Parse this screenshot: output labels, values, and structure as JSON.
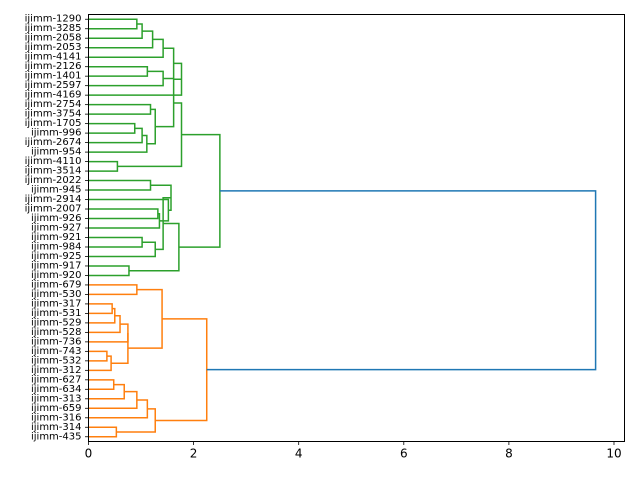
{
  "chart_data": {
    "type": "dendrogram",
    "orientation": "left",
    "title": "",
    "xlabel": "",
    "ylabel": "",
    "xlim": [
      0,
      10.2
    ],
    "x_ticks": [
      0,
      2,
      4,
      6,
      8,
      10
    ],
    "grid": false,
    "colors": {
      "c1": "#2ca02c",
      "c2": "#ff7f0e",
      "root": "#1f77b4"
    },
    "leaves": [
      "ijimm-1290",
      "ijimm-3285",
      "ijimm-2058",
      "ijimm-2053",
      "ijimm-4141",
      "ijimm-2126",
      "ijimm-1401",
      "ijimm-2597",
      "ijimm-4169",
      "ijimm-2754",
      "ijimm-3754",
      "ijimm-1705",
      "ijimm-996",
      "ijimm-2674",
      "ijimm-954",
      "ijimm-4110",
      "ijimm-3514",
      "ijimm-2022",
      "ijimm-945",
      "ijimm-2914",
      "ijimm-2007",
      "ijimm-926",
      "ijimm-927",
      "ijimm-921",
      "ijimm-984",
      "ijimm-925",
      "ijimm-917",
      "ijimm-920",
      "ijimm-679",
      "ijimm-530",
      "ijimm-317",
      "ijimm-531",
      "ijimm-529",
      "ijimm-528",
      "ijimm-736",
      "ijimm-743",
      "ijimm-532",
      "ijimm-312",
      "ijimm-627",
      "ijimm-634",
      "ijimm-313",
      "ijimm-659",
      "ijimm-316",
      "ijimm-314",
      "ijimm-435"
    ],
    "merges": [
      {
        "id": "n1",
        "a": "ijimm-1290",
        "b": "ijimm-3285",
        "height": 0.92,
        "color": "c1"
      },
      {
        "id": "n2",
        "a": "n1",
        "b": "ijimm-2058",
        "height": 1.02,
        "color": "c1"
      },
      {
        "id": "n3",
        "a": "n2",
        "b": "ijimm-2053",
        "height": 1.22,
        "color": "c1"
      },
      {
        "id": "n4",
        "a": "n3",
        "b": "ijimm-4141",
        "height": 1.42,
        "color": "c1"
      },
      {
        "id": "n5",
        "a": "ijimm-2126",
        "b": "ijimm-1401",
        "height": 1.12,
        "color": "c1"
      },
      {
        "id": "n6",
        "a": "n5",
        "b": "ijimm-2597",
        "height": 1.42,
        "color": "c1"
      },
      {
        "id": "n7",
        "a": "n4",
        "b": "n6",
        "height": 1.62,
        "color": "c1"
      },
      {
        "id": "n8",
        "a": "n7",
        "b": "ijimm-4169",
        "height": 1.77,
        "color": "c1"
      },
      {
        "id": "n9",
        "a": "ijimm-2754",
        "b": "ijimm-3754",
        "height": 1.18,
        "color": "c1"
      },
      {
        "id": "n10",
        "a": "ijimm-1705",
        "b": "ijimm-996",
        "height": 0.88,
        "color": "c1"
      },
      {
        "id": "n11",
        "a": "n10",
        "b": "ijimm-2674",
        "height": 1.02,
        "color": "c1"
      },
      {
        "id": "n12",
        "a": "n11",
        "b": "ijimm-954",
        "height": 1.11,
        "color": "c1"
      },
      {
        "id": "n13",
        "a": "n9",
        "b": "n12",
        "height": 1.27,
        "color": "c1"
      },
      {
        "id": "n14",
        "a": "n8",
        "b": "n13",
        "height": 1.62,
        "color": "c1"
      },
      {
        "id": "n15",
        "a": "ijimm-4110",
        "b": "ijimm-3514",
        "height": 0.55,
        "color": "c1"
      },
      {
        "id": "n16",
        "a": "n14",
        "b": "n15",
        "height": 1.77,
        "color": "c1"
      },
      {
        "id": "n17",
        "a": "ijimm-2022",
        "b": "ijimm-945",
        "height": 1.18,
        "color": "c1"
      },
      {
        "id": "n18",
        "a": "ijimm-2007",
        "b": "ijimm-926",
        "height": 1.32,
        "color": "c1"
      },
      {
        "id": "n19",
        "a": "n18",
        "b": "ijimm-927",
        "height": 1.35,
        "color": "c1"
      },
      {
        "id": "n20",
        "a": "ijimm-2914",
        "b": "n19",
        "height": 1.52,
        "color": "c1"
      },
      {
        "id": "n21",
        "a": "n17",
        "b": "n20",
        "height": 1.57,
        "color": "c1"
      },
      {
        "id": "n22",
        "a": "ijimm-921",
        "b": "ijimm-984",
        "height": 1.02,
        "color": "c1"
      },
      {
        "id": "n23",
        "a": "n22",
        "b": "ijimm-925",
        "height": 1.27,
        "color": "c1"
      },
      {
        "id": "n24",
        "a": "n21",
        "b": "n23",
        "height": 1.42,
        "color": "c1"
      },
      {
        "id": "n25",
        "a": "ijimm-917",
        "b": "ijimm-920",
        "height": 0.77,
        "color": "c1"
      },
      {
        "id": "n26",
        "a": "n24",
        "b": "n25",
        "height": 1.72,
        "color": "c1"
      },
      {
        "id": "n27",
        "a": "n16",
        "b": "n26",
        "height": 2.5,
        "color": "c1"
      },
      {
        "id": "n28",
        "a": "ijimm-679",
        "b": "ijimm-530",
        "height": 0.92,
        "color": "c2"
      },
      {
        "id": "n29",
        "a": "ijimm-317",
        "b": "ijimm-531",
        "height": 0.45,
        "color": "c2"
      },
      {
        "id": "n30",
        "a": "n29",
        "b": "ijimm-529",
        "height": 0.5,
        "color": "c2"
      },
      {
        "id": "n31",
        "a": "n30",
        "b": "ijimm-528",
        "height": 0.6,
        "color": "c2"
      },
      {
        "id": "n32",
        "a": "n31",
        "b": "ijimm-736",
        "height": 0.75,
        "color": "c2"
      },
      {
        "id": "n33",
        "a": "ijimm-743",
        "b": "ijimm-532",
        "height": 0.35,
        "color": "c2"
      },
      {
        "id": "n34",
        "a": "n33",
        "b": "ijimm-312",
        "height": 0.43,
        "color": "c2"
      },
      {
        "id": "n35",
        "a": "n32",
        "b": "n34",
        "height": 0.75,
        "color": "c2"
      },
      {
        "id": "n36",
        "a": "n28",
        "b": "n35",
        "height": 1.4,
        "color": "c2"
      },
      {
        "id": "n37",
        "a": "ijimm-627",
        "b": "ijimm-634",
        "height": 0.48,
        "color": "c2"
      },
      {
        "id": "n38",
        "a": "n37",
        "b": "ijimm-313",
        "height": 0.68,
        "color": "c2"
      },
      {
        "id": "n39",
        "a": "n38",
        "b": "ijimm-659",
        "height": 0.92,
        "color": "c2"
      },
      {
        "id": "n40",
        "a": "n39",
        "b": "ijimm-316",
        "height": 1.12,
        "color": "c2"
      },
      {
        "id": "n41",
        "a": "ijimm-314",
        "b": "ijimm-435",
        "height": 0.53,
        "color": "c2"
      },
      {
        "id": "n42",
        "a": "n40",
        "b": "n41",
        "height": 1.27,
        "color": "c2"
      },
      {
        "id": "n43",
        "a": "n36",
        "b": "n42",
        "height": 2.25,
        "color": "c2"
      },
      {
        "id": "n44",
        "a": "n27",
        "b": "n43",
        "height": 9.65,
        "color": "root"
      }
    ]
  }
}
